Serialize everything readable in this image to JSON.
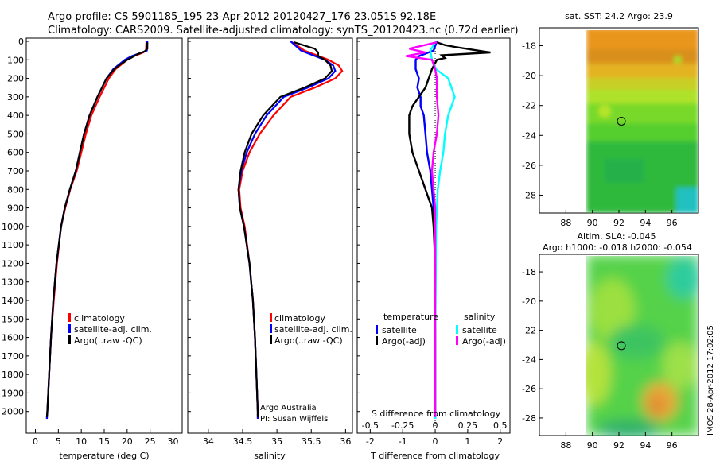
{
  "header": {
    "line1": "Argo profile: CS 5901185_195 23-Apr-2012 20120427_176 23.051S 92.18E",
    "line2": "Climatology: CARS2009. Satellite-adjusted climatology: synTS_20120423.nc (0.72d earlier)"
  },
  "side_label": "IMOS 28-Apr-2012 17:02:05",
  "chart_data": [
    {
      "type": "line",
      "panel": "temperature",
      "xlabel": "temperature (deg C)",
      "ylabel": "",
      "xlim": [
        -2,
        32
      ],
      "ylim": [
        2100,
        0
      ],
      "x_ticks": [
        0,
        5,
        10,
        15,
        20,
        25,
        30
      ],
      "y_ticks": [
        0,
        100,
        200,
        300,
        400,
        500,
        600,
        700,
        800,
        900,
        1000,
        1100,
        1200,
        1300,
        1400,
        1500,
        1600,
        1700,
        1800,
        1900,
        2000
      ],
      "legend": [
        "climatology",
        "satellite-adj. clim.",
        "Argo(..raw -QC)"
      ],
      "series": [
        {
          "name": "climatology",
          "color": "#ff0000",
          "depth": [
            0,
            50,
            60,
            80,
            100,
            150,
            200,
            300,
            400,
            500,
            600,
            700,
            800,
            900,
            1000,
            1200,
            1400,
            1600,
            1800,
            2000,
            2040
          ],
          "values": [
            24.2,
            24.1,
            23.5,
            21.5,
            20,
            17.5,
            16,
            14,
            12.2,
            11,
            10,
            9,
            7.6,
            6.5,
            5.6,
            4.7,
            4,
            3.4,
            3,
            2.6,
            2.5
          ]
        },
        {
          "name": "satellite-adj. clim.",
          "color": "#0000ff",
          "depth": [
            0,
            50,
            60,
            80,
            100,
            150,
            200,
            300,
            400,
            500,
            600,
            700,
            800,
            900,
            1000,
            1200,
            1400,
            1600,
            1800,
            2000,
            2040
          ],
          "values": [
            24.4,
            24.3,
            23.2,
            21,
            19.5,
            17,
            15.5,
            13.5,
            11.8,
            10.6,
            9.7,
            8.8,
            7.5,
            6.4,
            5.6,
            4.6,
            3.9,
            3.4,
            3,
            2.6,
            2.5
          ]
        },
        {
          "name": "Argo(..raw -QC)",
          "color": "#000000",
          "depth": [
            5,
            40,
            55,
            70,
            90,
            100,
            120,
            150,
            200,
            300,
            400,
            500,
            600,
            700,
            800,
            900,
            1000,
            1200,
            1400,
            1600,
            1800,
            2000,
            2030
          ],
          "values": [
            24.4,
            24.4,
            23.8,
            22.2,
            20.8,
            20,
            18.8,
            17.2,
            15.5,
            13.5,
            11.8,
            10.6,
            9.7,
            8.8,
            7.5,
            6.4,
            5.6,
            4.6,
            3.9,
            3.4,
            3,
            2.6,
            2.5
          ]
        }
      ]
    },
    {
      "type": "line",
      "panel": "salinity",
      "xlabel": "salinity",
      "xlim": [
        33.7,
        36.1
      ],
      "ylim": [
        2100,
        0
      ],
      "x_ticks": [
        34,
        34.5,
        35,
        35.5,
        36
      ],
      "x_tick_labels": [
        "34",
        "34.5",
        "35",
        "35.5",
        "36"
      ],
      "legend": [
        "climatology",
        "satellite-adj. clim.",
        "Argo(..raw -QC)"
      ],
      "annotation": [
        "Argo Australia",
        "PI: Susan Wijffels"
      ],
      "series": [
        {
          "name": "climatology",
          "color": "#ff0000",
          "depth": [
            0,
            50,
            100,
            130,
            160,
            200,
            250,
            300,
            400,
            500,
            600,
            700,
            800,
            900,
            1000,
            1200,
            1400,
            1600,
            1800,
            2000,
            2040
          ],
          "values": [
            35.2,
            35.4,
            35.75,
            35.9,
            35.95,
            35.85,
            35.55,
            35.2,
            34.95,
            34.75,
            34.6,
            34.5,
            34.45,
            34.47,
            34.53,
            34.6,
            34.65,
            34.68,
            34.7,
            34.72,
            34.72
          ]
        },
        {
          "name": "satellite-adj. clim.",
          "color": "#0000ff",
          "depth": [
            0,
            50,
            100,
            130,
            160,
            200,
            250,
            300,
            400,
            500,
            600,
            700,
            800,
            900,
            1000,
            1200,
            1400,
            1600,
            1800,
            2000,
            2040
          ],
          "values": [
            35.2,
            35.35,
            35.7,
            35.82,
            35.85,
            35.75,
            35.45,
            35.1,
            34.85,
            34.68,
            34.56,
            34.48,
            34.44,
            34.46,
            34.52,
            34.6,
            34.65,
            34.68,
            34.7,
            34.72,
            34.72
          ]
        },
        {
          "name": "Argo(..raw -QC)",
          "color": "#000000",
          "depth": [
            5,
            40,
            60,
            80,
            100,
            130,
            160,
            200,
            250,
            300,
            400,
            500,
            600,
            700,
            800,
            900,
            1000,
            1200,
            1400,
            1600,
            1800,
            2000,
            2030
          ],
          "values": [
            35.25,
            35.55,
            35.6,
            35.6,
            35.7,
            35.78,
            35.8,
            35.7,
            35.4,
            35.05,
            34.8,
            34.63,
            34.53,
            34.47,
            34.44,
            34.46,
            34.52,
            34.6,
            34.65,
            34.68,
            34.7,
            34.72,
            34.72
          ]
        }
      ]
    },
    {
      "type": "line",
      "panel": "differences",
      "xlabel": "T difference from climatology",
      "xlabel_top": "S difference from climatology",
      "xlim": [
        -2.4,
        2.3
      ],
      "ylim": [
        2100,
        0
      ],
      "x_ticks": [
        -2,
        -1,
        0,
        1,
        2
      ],
      "s_ticks": [
        -0.5,
        -0.25,
        0,
        0.25,
        0.5
      ],
      "s_tick_labels": [
        "-0.5",
        "-0.25",
        "0",
        "0.25",
        "0.5"
      ],
      "legend_temperature": "temperature",
      "legend_salinity": "salinity",
      "legend_left": [
        "satellite",
        "Argo(-adj)"
      ],
      "legend_right": [
        "satellite",
        "Argo(-adj)"
      ],
      "series": [
        {
          "name": "satellite",
          "color": "#0000ff",
          "depth": [
            0,
            50,
            80,
            100,
            150,
            200,
            250,
            300,
            350,
            400,
            500,
            600,
            700,
            800,
            900,
            1000,
            1200,
            1400,
            1600,
            1800,
            2000,
            2040
          ],
          "values": [
            0.05,
            -0.05,
            -0.5,
            -0.6,
            -0.6,
            -0.5,
            -0.55,
            -0.45,
            -0.45,
            -0.35,
            -0.3,
            -0.25,
            -0.15,
            -0.1,
            -0.05,
            0,
            0,
            0,
            0,
            0,
            0,
            0
          ]
        },
        {
          "name": "Argo(-adj)",
          "color": "#000000",
          "depth": [
            5,
            20,
            30,
            50,
            60,
            75,
            90,
            100,
            150,
            200,
            250,
            300,
            350,
            400,
            500,
            600,
            700,
            800,
            900,
            1000,
            1200,
            1400,
            1600,
            1800,
            2000,
            2030
          ],
          "values": [
            0.05,
            0.3,
            0.6,
            1.3,
            1.7,
            0.2,
            0.3,
            0.05,
            -0.1,
            -0.2,
            -0.3,
            -0.5,
            -0.7,
            -0.8,
            -0.8,
            -0.7,
            -0.5,
            -0.3,
            -0.1,
            -0.05,
            0,
            0,
            0,
            0,
            0,
            0
          ]
        },
        {
          "name": "satellite",
          "color": "#00ffff",
          "depth": [
            0,
            50,
            100,
            150,
            200,
            300,
            400,
            500,
            600,
            700,
            800,
            900,
            1000,
            1200,
            1400,
            1600,
            1800,
            2000,
            2040
          ],
          "values": [
            0.02,
            -0.15,
            -0.1,
            0.02,
            0.4,
            0.6,
            0.4,
            0.3,
            0.25,
            0.15,
            0.08,
            0.05,
            0.03,
            0.02,
            0.01,
            0,
            0,
            0,
            0
          ]
        },
        {
          "name": "Argo(-adj)",
          "color": "#ff00ff",
          "depth": [
            5,
            40,
            60,
            80,
            100,
            150,
            200,
            300,
            400,
            500,
            600,
            700,
            800,
            900,
            1000,
            1200,
            1400,
            1600,
            1800,
            2000,
            2030
          ],
          "values": [
            0.05,
            -0.8,
            -0.3,
            -0.9,
            -0.1,
            0,
            0.05,
            0.05,
            0.1,
            0.05,
            -0.05,
            -0.1,
            -0.05,
            0,
            0,
            0,
            0,
            0,
            0,
            0,
            0
          ]
        }
      ]
    },
    {
      "type": "heatmap",
      "panel": "sst_map",
      "title": "sat. SST: 24.2 Argo: 23.9",
      "x_ticks": [
        88,
        90,
        92,
        94,
        96
      ],
      "y_ticks": [
        -18,
        -20,
        -22,
        -24,
        -26,
        -28
      ],
      "xlim": [
        86,
        98
      ],
      "ylim": [
        -29.2,
        -16.8
      ],
      "data_extent_x": [
        90,
        98
      ],
      "marker": {
        "lon": 92.18,
        "lat": -23.051
      }
    },
    {
      "type": "heatmap",
      "panel": "sla_map",
      "title": "Altim. SLA: -0.045",
      "subtitle": "Argo h1000: -0.018 h2000: -0.054",
      "x_ticks": [
        88,
        90,
        92,
        94,
        96
      ],
      "y_ticks": [
        -18,
        -20,
        -22,
        -24,
        -26,
        -28
      ],
      "xlim": [
        86,
        98
      ],
      "ylim": [
        -29.2,
        -16.8
      ],
      "data_extent_x": [
        90,
        98
      ],
      "marker": {
        "lon": 92.18,
        "lat": -23.051
      }
    }
  ]
}
